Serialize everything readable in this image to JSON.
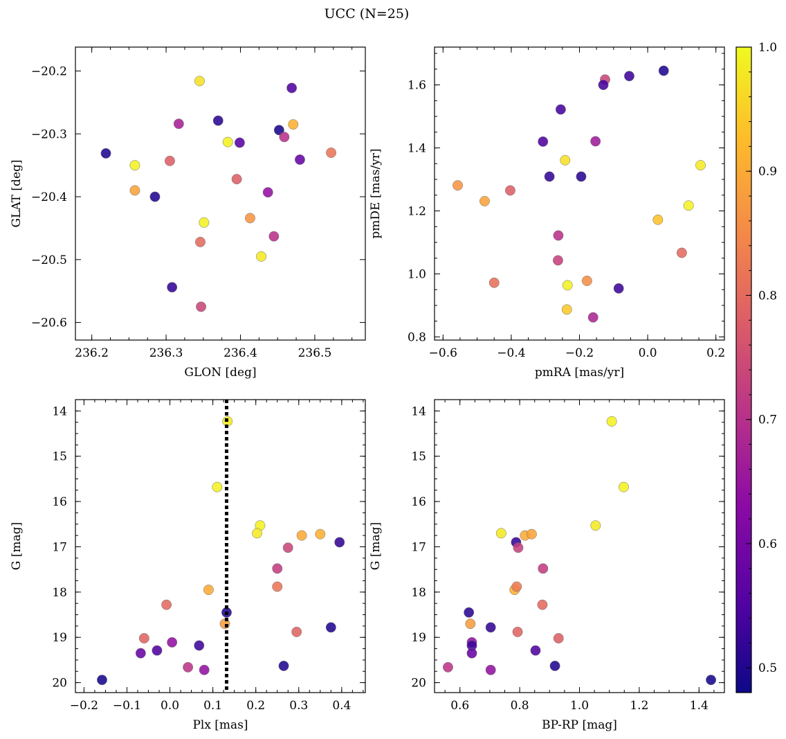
{
  "figure": {
    "title": "UCC (N=25)"
  },
  "colorbar": {
    "colormap": "plasma",
    "range": [
      0.48,
      1.0
    ],
    "ticks": [
      0.5,
      0.6,
      0.7,
      0.8,
      0.9,
      1.0
    ],
    "tick_labels": [
      "0.5",
      "0.6",
      "0.7",
      "0.8",
      "0.9",
      "1.0"
    ]
  },
  "chart_data": [
    {
      "type": "scatter",
      "name": "glon-glat",
      "xlabel": "GLON [deg]",
      "ylabel": "GLAT [deg]",
      "xlim": [
        236.178,
        236.568
      ],
      "ylim": [
        -20.628,
        -20.162
      ],
      "y_inverted": false,
      "xticks": [
        236.2,
        236.3,
        236.4,
        236.5
      ],
      "xtick_labels": [
        "236.2",
        "236.3",
        "236.4",
        "236.5"
      ],
      "yticks": [
        -20.2,
        -20.3,
        -20.4,
        -20.5,
        -20.6
      ],
      "ytick_labels": [
        "−20.2",
        "−20.3",
        "−20.4",
        "−20.5",
        "−20.6"
      ],
      "x": [
        236.345,
        236.469,
        236.219,
        236.37,
        236.317,
        236.452,
        236.471,
        236.383,
        236.399,
        236.459,
        236.522,
        236.258,
        236.305,
        236.48,
        236.395,
        236.258,
        236.285,
        236.437,
        236.413,
        236.351,
        236.445,
        236.346,
        236.428,
        236.308,
        236.347
      ],
      "y": [
        -20.216,
        -20.227,
        -20.331,
        -20.279,
        -20.284,
        -20.294,
        -20.285,
        -20.313,
        -20.314,
        -20.305,
        -20.33,
        -20.35,
        -20.343,
        -20.341,
        -20.372,
        -20.39,
        -20.4,
        -20.393,
        -20.434,
        -20.441,
        -20.463,
        -20.472,
        -20.495,
        -20.544,
        -20.575
      ],
      "color": [
        0.97,
        0.55,
        0.5,
        0.51,
        0.67,
        0.49,
        0.91,
        0.99,
        0.56,
        0.7,
        0.82,
        0.99,
        0.78,
        0.58,
        0.78,
        0.89,
        0.5,
        0.64,
        0.87,
        0.99,
        0.7,
        0.8,
        0.98,
        0.52,
        0.74
      ]
    },
    {
      "type": "scatter",
      "name": "pmra-pmde",
      "xlabel": "pmRA [mas/yr]",
      "ylabel": "pmDE [mas/yr]",
      "xlim": [
        -0.625,
        0.225
      ],
      "ylim": [
        0.79,
        1.72
      ],
      "y_inverted": false,
      "xticks": [
        -0.6,
        -0.4,
        -0.2,
        0.0,
        0.2
      ],
      "xtick_labels": [
        "−0.6",
        "−0.4",
        "−0.2",
        "0.0",
        "0.2"
      ],
      "yticks": [
        0.8,
        1.0,
        1.2,
        1.4,
        1.6
      ],
      "ytick_labels": [
        "0.8",
        "1.0",
        "1.2",
        "1.4",
        "1.6"
      ],
      "x": [
        0.047,
        -0.054,
        -0.125,
        -0.13,
        -0.255,
        -0.307,
        -0.153,
        -0.242,
        -0.288,
        -0.195,
        0.155,
        -0.557,
        -0.478,
        -0.403,
        0.12,
        0.03,
        -0.262,
        -0.263,
        0.1,
        -0.45,
        -0.178,
        -0.235,
        -0.085,
        -0.237,
        -0.16
      ],
      "y": [
        1.645,
        1.628,
        1.617,
        1.6,
        1.522,
        1.42,
        1.421,
        1.361,
        1.309,
        1.309,
        1.345,
        1.281,
        1.231,
        1.265,
        1.217,
        1.172,
        1.122,
        1.043,
        1.067,
        0.972,
        0.978,
        0.964,
        0.954,
        0.887,
        0.862
      ],
      "color": [
        0.5,
        0.53,
        0.74,
        0.54,
        0.54,
        0.55,
        0.66,
        0.97,
        0.52,
        0.51,
        0.98,
        0.87,
        0.89,
        0.78,
        0.99,
        0.93,
        0.7,
        0.73,
        0.8,
        0.81,
        0.86,
        0.99,
        0.53,
        0.94,
        0.68
      ]
    },
    {
      "type": "scatter",
      "name": "plx-g",
      "xlabel": "Plx [mas]",
      "ylabel": "G [mag]",
      "xlim": [
        -0.22,
        0.455
      ],
      "ylim": [
        20.22,
        13.75
      ],
      "y_inverted": true,
      "xticks": [
        -0.2,
        -0.1,
        0.0,
        0.1,
        0.2,
        0.3,
        0.4
      ],
      "xtick_labels": [
        "−0.2",
        "−0.1",
        "0.0",
        "0.1",
        "0.2",
        "0.3",
        "0.4"
      ],
      "yticks": [
        14,
        15,
        16,
        17,
        18,
        19,
        20
      ],
      "ytick_labels": [
        "14",
        "15",
        "16",
        "17",
        "18",
        "19",
        "20"
      ],
      "vline": {
        "x": 0.132,
        "style": "dotted",
        "color": "#000000"
      },
      "x": [
        0.134,
        0.11,
        0.21,
        0.203,
        0.307,
        0.35,
        0.395,
        0.275,
        0.25,
        0.09,
        0.25,
        -0.008,
        0.132,
        0.128,
        -0.06,
        0.375,
        0.295,
        0.005,
        0.068,
        -0.03,
        -0.068,
        0.265,
        0.042,
        0.08,
        -0.158
      ],
      "y": [
        14.23,
        15.68,
        16.53,
        16.7,
        16.75,
        16.72,
        16.9,
        17.02,
        17.48,
        17.95,
        17.88,
        18.28,
        18.45,
        18.7,
        19.02,
        18.78,
        18.88,
        19.11,
        19.18,
        19.29,
        19.35,
        19.63,
        19.66,
        19.72,
        19.94
      ],
      "color": [
        0.98,
        0.99,
        0.99,
        0.98,
        0.9,
        0.91,
        0.52,
        0.74,
        0.72,
        0.9,
        0.82,
        0.8,
        0.5,
        0.88,
        0.79,
        0.5,
        0.79,
        0.64,
        0.53,
        0.55,
        0.58,
        0.5,
        0.71,
        0.64,
        0.49
      ]
    },
    {
      "type": "scatter",
      "name": "bprp-g",
      "xlabel": "BP-RP [mag]",
      "ylabel": "G [mag]",
      "xlim": [
        0.515,
        1.485
      ],
      "ylim": [
        20.22,
        13.75
      ],
      "y_inverted": true,
      "xticks": [
        0.6,
        0.8,
        1.0,
        1.2,
        1.4
      ],
      "xtick_labels": [
        "0.6",
        "0.8",
        "1.0",
        "1.2",
        "1.4"
      ],
      "yticks": [
        14,
        15,
        16,
        17,
        18,
        19,
        20
      ],
      "ytick_labels": [
        "14",
        "15",
        "16",
        "17",
        "18",
        "19",
        "20"
      ],
      "x": [
        1.108,
        1.148,
        0.738,
        1.054,
        0.818,
        0.84,
        0.788,
        0.795,
        0.878,
        0.783,
        0.79,
        0.876,
        0.63,
        0.635,
        0.703,
        0.793,
        0.93,
        0.64,
        0.64,
        0.853,
        0.64,
        0.918,
        0.56,
        0.703,
        1.44
      ],
      "y": [
        14.23,
        15.68,
        16.7,
        16.53,
        16.75,
        16.72,
        16.9,
        17.02,
        17.48,
        17.95,
        17.88,
        18.28,
        18.45,
        18.7,
        18.78,
        18.88,
        19.02,
        19.11,
        19.18,
        19.29,
        19.35,
        19.63,
        19.66,
        19.72,
        19.94
      ],
      "color": [
        0.99,
        0.99,
        0.98,
        0.98,
        0.9,
        0.89,
        0.52,
        0.73,
        0.72,
        0.91,
        0.83,
        0.8,
        0.51,
        0.88,
        0.52,
        0.79,
        0.78,
        0.64,
        0.53,
        0.55,
        0.58,
        0.5,
        0.71,
        0.64,
        0.49
      ]
    }
  ]
}
